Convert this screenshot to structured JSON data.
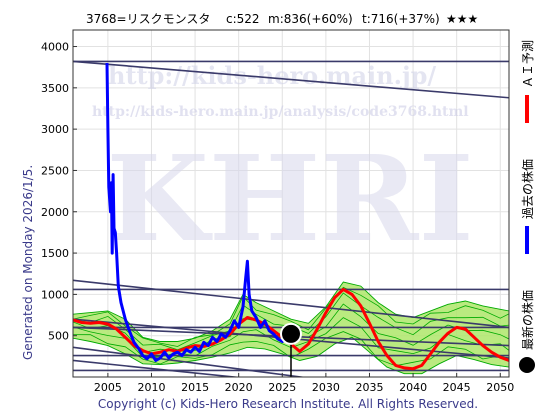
{
  "header": {
    "code_name": "3768=リスクモンスタ",
    "current": "c:522",
    "mid": "m:836(+60%)",
    "target": "t:716(+37%)",
    "stars": "★★★"
  },
  "watermark": {
    "url_main": "http://kids-hero.main.jp/",
    "url_analysis": "http://kids-hero.main.jp/analysis/code3768.html",
    "logo": "KHRI"
  },
  "side_text": {
    "generated": "Generated on Monday 2026/1/5."
  },
  "footer": {
    "copyright": "Copyright (c) Kids-Hero Research Institute. All Rights Reserved."
  },
  "legend": {
    "ai_forecast": "ＡＩ予測",
    "past_price": "過去の株価",
    "latest_price": "最新の株価"
  },
  "colors": {
    "past": "#0000ff",
    "ai": "#ff0000",
    "band": "#00aa00",
    "band_fill": "#aee66a",
    "band_fill_light": "#f5f59a",
    "trend": "#3a3a6a",
    "axis_text": "#3a3a8a"
  },
  "chart_data": {
    "type": "line",
    "xlim": [
      2001,
      2051
    ],
    "ylim": [
      0,
      4200
    ],
    "x_ticks": [
      2005,
      2010,
      2015,
      2020,
      2025,
      2030,
      2035,
      2040,
      2045,
      2050
    ],
    "y_ticks": [
      500,
      1000,
      1500,
      2000,
      2500,
      3000,
      3500,
      4000
    ],
    "grid": true,
    "latest_point": {
      "x": 2026.0,
      "y": 522
    },
    "series": [
      {
        "name": "過去の株価",
        "color": "#0000ff",
        "points": [
          [
            2004.9,
            3800
          ],
          [
            2005.0,
            3000
          ],
          [
            2005.1,
            2300
          ],
          [
            2005.3,
            2000
          ],
          [
            2005.4,
            2350
          ],
          [
            2005.5,
            1500
          ],
          [
            2005.6,
            2450
          ],
          [
            2005.7,
            1800
          ],
          [
            2005.85,
            1750
          ],
          [
            2006.0,
            1500
          ],
          [
            2006.2,
            1100
          ],
          [
            2006.5,
            900
          ],
          [
            2007.0,
            700
          ],
          [
            2007.5,
            550
          ],
          [
            2008.0,
            420
          ],
          [
            2008.5,
            350
          ],
          [
            2009.0,
            260
          ],
          [
            2009.5,
            220
          ],
          [
            2010.0,
            280
          ],
          [
            2010.5,
            200
          ],
          [
            2011.0,
            230
          ],
          [
            2011.5,
            300
          ],
          [
            2012.0,
            230
          ],
          [
            2012.5,
            280
          ],
          [
            2013.0,
            300
          ],
          [
            2013.5,
            260
          ],
          [
            2014.0,
            330
          ],
          [
            2014.5,
            300
          ],
          [
            2015.0,
            360
          ],
          [
            2015.5,
            310
          ],
          [
            2016.0,
            420
          ],
          [
            2016.5,
            380
          ],
          [
            2017.0,
            480
          ],
          [
            2017.5,
            430
          ],
          [
            2018.0,
            520
          ],
          [
            2018.5,
            480
          ],
          [
            2019.0,
            560
          ],
          [
            2019.5,
            680
          ],
          [
            2020.0,
            600
          ],
          [
            2020.5,
            850
          ],
          [
            2020.8,
            1200
          ],
          [
            2021.0,
            1400
          ],
          [
            2021.2,
            1000
          ],
          [
            2021.5,
            800
          ],
          [
            2022.0,
            720
          ],
          [
            2022.5,
            600
          ],
          [
            2023.0,
            680
          ],
          [
            2023.5,
            560
          ],
          [
            2024.0,
            520
          ],
          [
            2024.5,
            460
          ],
          [
            2025.0,
            430
          ],
          [
            2025.5,
            480
          ],
          [
            2026.0,
            522
          ]
        ]
      },
      {
        "name": "ＡＩ予測",
        "color": "#ff0000",
        "points": [
          [
            2001,
            690
          ],
          [
            2002,
            660
          ],
          [
            2003,
            650
          ],
          [
            2004,
            660
          ],
          [
            2005,
            640
          ],
          [
            2006,
            580
          ],
          [
            2007,
            480
          ],
          [
            2008,
            380
          ],
          [
            2009,
            320
          ],
          [
            2010,
            280
          ],
          [
            2011,
            300
          ],
          [
            2012,
            330
          ],
          [
            2013,
            310
          ],
          [
            2014,
            350
          ],
          [
            2015,
            380
          ],
          [
            2016,
            370
          ],
          [
            2017,
            400
          ],
          [
            2018,
            450
          ],
          [
            2019,
            520
          ],
          [
            2020,
            640
          ],
          [
            2021,
            720
          ],
          [
            2022,
            690
          ],
          [
            2023,
            640
          ],
          [
            2024,
            560
          ],
          [
            2025,
            480
          ],
          [
            2026,
            400
          ],
          [
            2027,
            310
          ],
          [
            2028,
            400
          ],
          [
            2029,
            580
          ],
          [
            2030,
            780
          ],
          [
            2031,
            960
          ],
          [
            2032,
            1060
          ],
          [
            2033,
            1000
          ],
          [
            2034,
            860
          ],
          [
            2035,
            650
          ],
          [
            2036,
            430
          ],
          [
            2037,
            260
          ],
          [
            2038,
            140
          ],
          [
            2039,
            110
          ],
          [
            2040,
            100
          ],
          [
            2041,
            140
          ],
          [
            2042,
            280
          ],
          [
            2043,
            420
          ],
          [
            2044,
            530
          ],
          [
            2045,
            600
          ],
          [
            2046,
            580
          ],
          [
            2047,
            480
          ],
          [
            2048,
            380
          ],
          [
            2049,
            300
          ],
          [
            2050,
            240
          ],
          [
            2051,
            200
          ]
        ]
      }
    ],
    "band": {
      "upper": [
        [
          2001,
          760
        ],
        [
          2003,
          780
        ],
        [
          2005,
          800
        ],
        [
          2007,
          700
        ],
        [
          2009,
          480
        ],
        [
          2011,
          430
        ],
        [
          2013,
          430
        ],
        [
          2015,
          470
        ],
        [
          2017,
          560
        ],
        [
          2019,
          700
        ],
        [
          2020.5,
          1000
        ],
        [
          2022,
          900
        ],
        [
          2024,
          800
        ],
        [
          2026,
          700
        ],
        [
          2028,
          650
        ],
        [
          2030,
          850
        ],
        [
          2032,
          1150
        ],
        [
          2034,
          1100
        ],
        [
          2036,
          900
        ],
        [
          2038,
          760
        ],
        [
          2040,
          720
        ],
        [
          2042,
          800
        ],
        [
          2044,
          880
        ],
        [
          2046,
          920
        ],
        [
          2048,
          860
        ],
        [
          2050,
          820
        ],
        [
          2051,
          800
        ]
      ],
      "lower": [
        [
          2001,
          470
        ],
        [
          2003,
          430
        ],
        [
          2005,
          380
        ],
        [
          2007,
          280
        ],
        [
          2009,
          160
        ],
        [
          2011,
          150
        ],
        [
          2013,
          170
        ],
        [
          2015,
          200
        ],
        [
          2017,
          240
        ],
        [
          2019,
          290
        ],
        [
          2021,
          360
        ],
        [
          2023,
          340
        ],
        [
          2025,
          280
        ],
        [
          2027,
          200
        ],
        [
          2029,
          250
        ],
        [
          2031,
          400
        ],
        [
          2033,
          480
        ],
        [
          2035,
          300
        ],
        [
          2037,
          120
        ],
        [
          2039,
          40
        ],
        [
          2041,
          40
        ],
        [
          2043,
          160
        ],
        [
          2045,
          260
        ],
        [
          2047,
          210
        ],
        [
          2049,
          150
        ],
        [
          2051,
          120
        ]
      ]
    },
    "trend_lines": [
      {
        "x1": 2001,
        "y1": 3820,
        "x2": 2051,
        "y2": 3380
      },
      {
        "x1": 2001,
        "y1": 3820,
        "x2": 2051,
        "y2": 3820
      },
      {
        "x1": 2001,
        "y1": 1170,
        "x2": 2051,
        "y2": 600
      },
      {
        "x1": 2001,
        "y1": 1060,
        "x2": 2051,
        "y2": 1060
      },
      {
        "x1": 2001,
        "y1": 700,
        "x2": 2051,
        "y2": 230
      },
      {
        "x1": 2001,
        "y1": 600,
        "x2": 2051,
        "y2": 600
      },
      {
        "x1": 2001,
        "y1": 600,
        "x2": 2051,
        "y2": 380
      },
      {
        "x1": 2001,
        "y1": 360,
        "x2": 2030,
        "y2": -40
      },
      {
        "x1": 2001,
        "y1": 200,
        "x2": 2025,
        "y2": -60
      },
      {
        "x1": 2001,
        "y1": 260,
        "x2": 2051,
        "y2": 260
      },
      {
        "x1": 2001,
        "y1": 80,
        "x2": 2051,
        "y2": 80
      }
    ]
  }
}
